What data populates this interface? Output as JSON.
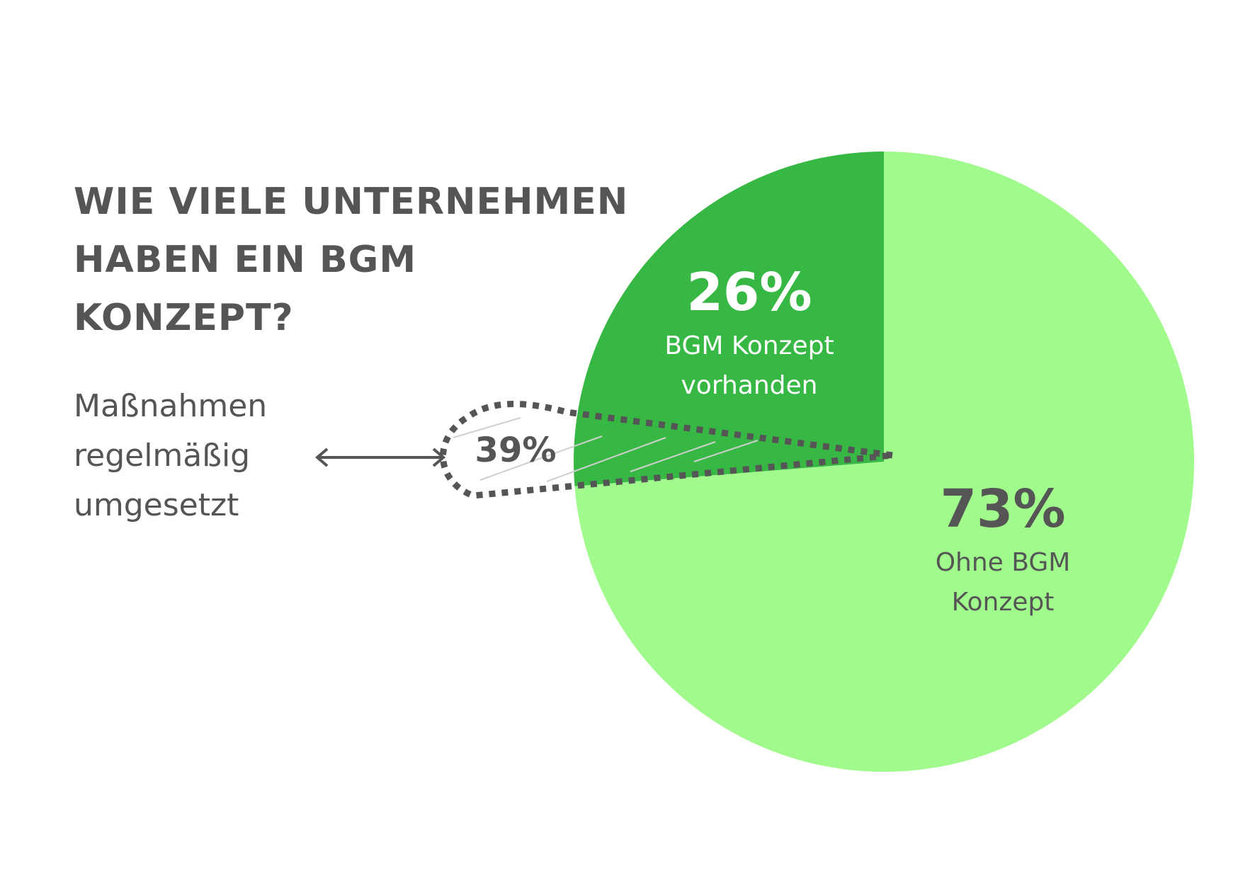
{
  "title": [
    "WIE VIELE UNTERNEHMEN",
    "HABEN EIN BGM",
    "KONZEPT?"
  ],
  "note": [
    "Maßnahmen",
    "regelmäßig",
    "umgesetzt"
  ],
  "colors": {
    "light_green": "#a1fb8c",
    "dark_green": "#37b844",
    "text_gray": "#555555",
    "white": "#ffffff"
  },
  "chart_data": {
    "type": "pie",
    "slices": [
      {
        "label": [
          "Ohne BGM",
          "Konzept"
        ],
        "value": 73,
        "value_label": "73%",
        "color": "#a1fb8c"
      },
      {
        "label": [
          "BGM Konzept",
          "vorhanden"
        ],
        "value": 26,
        "value_label": "26%",
        "color": "#37b844"
      }
    ],
    "sub_slice": {
      "value": 39,
      "value_label": "39%",
      "parent": "BGM Konzept vorhanden"
    }
  }
}
